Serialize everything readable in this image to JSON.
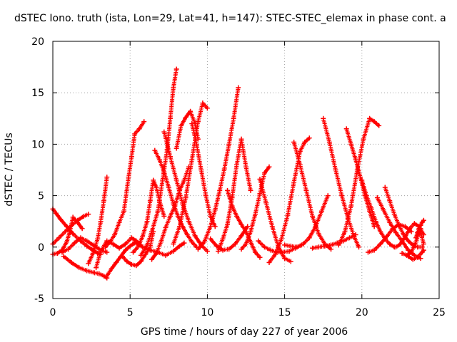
{
  "chart_data": {
    "type": "scatter",
    "title": "dSTEC Iono. truth (ista, Lon=29, Lat=41, h=147): STEC-STEC_elemax in phase cont. a",
    "xlabel": "GPS time / hours of day 227 of year 2006",
    "ylabel": "dSTEC  / TECUs",
    "xlim": [
      0,
      25
    ],
    "ylim": [
      -5,
      20
    ],
    "xticks": [
      0,
      5,
      10,
      15,
      20,
      25
    ],
    "yticks": [
      -5,
      0,
      5,
      10,
      15,
      20
    ],
    "xtick_labels": [
      "0",
      "5",
      "10",
      "15",
      "20",
      "25"
    ],
    "ytick_labels": [
      "-5",
      "0",
      "5",
      "10",
      "15",
      "20"
    ],
    "grid": true,
    "legend": "none",
    "marker": "plus",
    "color": "#ff0000",
    "series": [
      {
        "x": [
          0.0,
          0.2,
          0.5,
          0.9,
          1.3,
          1.8,
          2.2,
          2.6,
          2.9,
          3.1
        ],
        "values": [
          3.7,
          3.3,
          2.7,
          2.0,
          1.3,
          0.6,
          0.1,
          -0.3,
          -0.6,
          -0.7
        ]
      },
      {
        "x": [
          0.0,
          0.3,
          0.6,
          0.9,
          1.1,
          1.3,
          1.6,
          1.9
        ],
        "values": [
          -0.7,
          -0.6,
          -0.3,
          0.5,
          1.5,
          2.9,
          2.4,
          1.8
        ]
      },
      {
        "x": [
          0.0,
          0.4,
          0.8,
          1.2,
          1.6,
          2.0,
          2.3
        ],
        "values": [
          0.3,
          0.9,
          1.5,
          2.1,
          2.6,
          3.0,
          3.2
        ]
      },
      {
        "x": [
          0.6,
          1.0,
          1.4,
          1.8,
          2.2,
          2.6,
          3.0,
          3.3,
          3.5
        ],
        "values": [
          -0.5,
          -0.2,
          0.4,
          0.9,
          0.6,
          0.2,
          -0.2,
          -0.4,
          -0.5
        ]
      },
      {
        "x": [
          0.7,
          1.2,
          1.7,
          2.2,
          2.7,
          3.0,
          3.3,
          3.5
        ],
        "values": [
          -0.9,
          -1.5,
          -2.0,
          -2.3,
          -2.5,
          -2.6,
          -2.8,
          -3.0
        ]
      },
      {
        "x": [
          2.3,
          2.6,
          2.9,
          3.1,
          3.3,
          3.5
        ],
        "values": [
          -1.6,
          -0.6,
          0.8,
          2.5,
          4.5,
          6.8
        ]
      },
      {
        "x": [
          3.5,
          3.8,
          4.1,
          4.4,
          4.7,
          5.0,
          5.3
        ],
        "values": [
          -2.8,
          -2.1,
          -1.5,
          -0.9,
          -0.3,
          0.1,
          0.4
        ]
      },
      {
        "x": [
          2.8,
          3.1,
          3.5,
          3.9,
          4.3,
          4.7,
          5.1,
          5.4,
          5.7
        ],
        "values": [
          -2.0,
          -0.4,
          0.6,
          0.3,
          -0.1,
          0.3,
          0.9,
          0.6,
          0.2
        ]
      },
      {
        "x": [
          3.4,
          3.7,
          4.0,
          4.3,
          4.6,
          4.9,
          5.1,
          5.3,
          5.6,
          5.9
        ],
        "values": [
          0.0,
          0.5,
          1.2,
          2.4,
          3.5,
          6.8,
          8.8,
          11.0,
          11.5,
          12.2
        ]
      },
      {
        "x": [
          5.3,
          5.8,
          6.3,
          6.8,
          7.3,
          7.8,
          8.2,
          8.5
        ],
        "values": [
          0.5,
          0.0,
          -0.3,
          -0.5,
          -0.8,
          -0.4,
          0.1,
          0.4
        ]
      },
      {
        "x": [
          4.5,
          4.8,
          5.1,
          5.4,
          5.7,
          6.0,
          6.3,
          6.5
        ],
        "values": [
          -0.9,
          -1.4,
          -1.7,
          -1.8,
          -1.4,
          -0.7,
          0.0,
          1.5
        ]
      },
      {
        "x": [
          5.2,
          5.5,
          5.8,
          6.1,
          6.3,
          6.5,
          6.7,
          6.9,
          7.2
        ],
        "values": [
          -0.5,
          0.0,
          1.0,
          2.5,
          4.5,
          6.5,
          5.8,
          4.5,
          3.0
        ]
      },
      {
        "x": [
          5.7,
          6.1,
          6.4,
          6.8,
          7.1,
          7.4,
          7.6,
          7.8,
          8.0
        ],
        "values": [
          -0.8,
          0.2,
          1.5,
          3.5,
          6.5,
          9.5,
          12.5,
          15.5,
          17.3
        ]
      },
      {
        "x": [
          6.4,
          6.7,
          7.0,
          7.3,
          7.6,
          7.9,
          8.2,
          8.5,
          8.8
        ],
        "values": [
          -1.2,
          -0.6,
          0.5,
          1.9,
          3.0,
          4.0,
          5.5,
          6.5,
          7.8
        ]
      },
      {
        "x": [
          6.6,
          6.9,
          7.2,
          7.5,
          7.8,
          8.1,
          8.4,
          8.7,
          9.0,
          9.3
        ],
        "values": [
          9.4,
          8.5,
          7.3,
          5.8,
          4.2,
          3.0,
          2.0,
          1.2,
          0.5,
          0.0
        ]
      },
      {
        "x": [
          7.2,
          7.6,
          8.0,
          8.4,
          8.8,
          9.2,
          9.6,
          10.0
        ],
        "values": [
          11.2,
          8.8,
          6.5,
          4.2,
          2.5,
          1.1,
          0.2,
          -0.4
        ]
      },
      {
        "x": [
          7.8,
          8.2,
          8.6,
          9.0,
          9.4,
          9.7,
          10.0
        ],
        "values": [
          0.3,
          2.0,
          4.8,
          8.5,
          12.2,
          14.0,
          13.5
        ]
      },
      {
        "x": [
          8.0,
          8.3,
          8.6,
          8.9,
          9.2,
          9.4
        ],
        "values": [
          9.6,
          11.8,
          12.6,
          13.2,
          12.0,
          10.5
        ]
      },
      {
        "x": [
          9.0,
          9.3,
          9.6,
          9.9,
          10.2,
          10.5
        ],
        "values": [
          12.0,
          10.0,
          7.5,
          5.0,
          3.0,
          2.0
        ]
      },
      {
        "x": [
          9.4,
          9.8,
          10.2,
          10.5,
          10.8,
          11.1,
          11.4,
          11.7,
          12.0
        ],
        "values": [
          -0.2,
          0.5,
          2.0,
          3.6,
          5.5,
          7.6,
          10.0,
          12.5,
          15.5
        ]
      },
      {
        "x": [
          10.2,
          10.6,
          11.0,
          11.4,
          11.8,
          12.2,
          12.6
        ],
        "values": [
          0.8,
          0.1,
          -0.3,
          -0.2,
          0.3,
          1.1,
          2.0
        ]
      },
      {
        "x": [
          10.7,
          11.0,
          11.3,
          11.6,
          11.9,
          12.2,
          12.5,
          12.8
        ],
        "values": [
          -0.4,
          0.8,
          2.2,
          4.8,
          8.0,
          10.5,
          7.8,
          5.5
        ]
      },
      {
        "x": [
          11.3,
          11.6,
          11.9,
          12.2,
          12.5,
          12.8,
          13.1,
          13.4
        ],
        "values": [
          5.5,
          4.0,
          3.0,
          2.2,
          1.5,
          0.5,
          -0.5,
          -1.0
        ]
      },
      {
        "x": [
          12.2,
          12.5,
          12.8,
          13.1,
          13.4,
          13.7,
          14.0
        ],
        "values": [
          -0.2,
          0.3,
          1.5,
          3.2,
          5.2,
          7.2,
          7.8
        ]
      },
      {
        "x": [
          13.3,
          13.7,
          14.1,
          14.5,
          14.9,
          15.3,
          15.7,
          16.1
        ],
        "values": [
          0.6,
          0.0,
          -0.3,
          -0.5,
          -0.5,
          -0.4,
          -0.1,
          0.2
        ]
      },
      {
        "x": [
          13.4,
          13.8,
          14.2,
          14.6,
          15.0,
          15.4
        ],
        "values": [
          6.6,
          4.3,
          2.0,
          0.0,
          -1.1,
          -1.4
        ]
      },
      {
        "x": [
          14.0,
          14.4,
          14.8,
          15.2,
          15.6,
          16.0,
          16.3,
          16.6
        ],
        "values": [
          -1.5,
          -0.7,
          0.8,
          3.1,
          6.3,
          9.3,
          10.2,
          10.6
        ]
      },
      {
        "x": [
          15.0,
          15.4,
          15.8,
          16.2,
          16.6,
          17.0,
          17.4,
          17.8
        ],
        "values": [
          0.2,
          0.1,
          0.0,
          0.3,
          0.9,
          2.0,
          3.5,
          5.0
        ]
      },
      {
        "x": [
          15.6,
          16.0,
          16.4,
          16.8,
          17.2,
          17.6,
          18.0
        ],
        "values": [
          10.2,
          8.0,
          5.5,
          3.0,
          1.3,
          0.3,
          -0.2
        ]
      },
      {
        "x": [
          16.8,
          17.2,
          17.6,
          18.0,
          18.4,
          18.8,
          19.2,
          19.6
        ],
        "values": [
          -0.1,
          0.0,
          0.1,
          0.2,
          0.4,
          0.6,
          0.9,
          1.2
        ]
      },
      {
        "x": [
          17.5,
          17.9,
          18.3,
          18.7,
          19.1,
          19.5,
          19.8
        ],
        "values": [
          12.5,
          10.2,
          7.5,
          5.0,
          2.8,
          1.0,
          0.0
        ]
      },
      {
        "x": [
          18.5,
          18.9,
          19.3,
          19.7,
          20.1,
          20.5,
          20.8,
          21.1
        ],
        "values": [
          0.2,
          1.5,
          4.0,
          7.5,
          10.5,
          12.5,
          12.2,
          11.8
        ]
      },
      {
        "x": [
          19.0,
          19.3,
          19.6,
          19.9,
          20.2,
          20.5,
          20.8
        ],
        "values": [
          11.5,
          10.0,
          8.5,
          6.8,
          5.0,
          3.5,
          2.0
        ]
      },
      {
        "x": [
          20.0,
          20.3,
          20.6,
          20.9,
          21.2,
          21.5,
          21.8,
          22.1
        ],
        "values": [
          6.5,
          5.0,
          3.8,
          2.5,
          1.5,
          0.8,
          0.3,
          0.0
        ]
      },
      {
        "x": [
          20.4,
          20.8,
          21.2,
          21.6,
          22.0,
          22.4,
          22.8,
          23.2
        ],
        "values": [
          -0.5,
          -0.3,
          0.3,
          1.0,
          1.8,
          2.2,
          2.0,
          1.5
        ]
      },
      {
        "x": [
          21.0,
          21.4,
          21.8,
          22.2,
          22.6,
          23.0,
          23.4,
          23.8
        ],
        "values": [
          4.8,
          3.6,
          2.4,
          1.4,
          0.6,
          -0.3,
          -0.8,
          -1.1
        ]
      },
      {
        "x": [
          21.5,
          21.8,
          22.1,
          22.4,
          22.7,
          23.0,
          23.3,
          23.6,
          23.9
        ],
        "values": [
          5.8,
          4.5,
          3.2,
          2.1,
          1.2,
          0.6,
          0.2,
          0.0,
          0.0
        ]
      },
      {
        "x": [
          22.2,
          22.5,
          22.8,
          23.1,
          23.4,
          23.7,
          24.0
        ],
        "values": [
          0.0,
          0.3,
          1.0,
          1.8,
          2.3,
          2.0,
          0.3
        ]
      },
      {
        "x": [
          22.6,
          22.9,
          23.2,
          23.5,
          23.8,
          24.0
        ],
        "values": [
          -0.6,
          -0.8,
          -0.5,
          0.5,
          1.8,
          1.2
        ]
      },
      {
        "x": [
          23.0,
          23.3,
          23.6,
          23.9,
          24.0
        ],
        "values": [
          -0.9,
          -1.2,
          -1.0,
          -0.5,
          -0.3
        ]
      },
      {
        "x": [
          23.5,
          23.6,
          23.7,
          23.8,
          23.9,
          24.0
        ],
        "values": [
          0.9,
          1.4,
          1.8,
          2.1,
          2.4,
          2.6
        ]
      }
    ]
  }
}
